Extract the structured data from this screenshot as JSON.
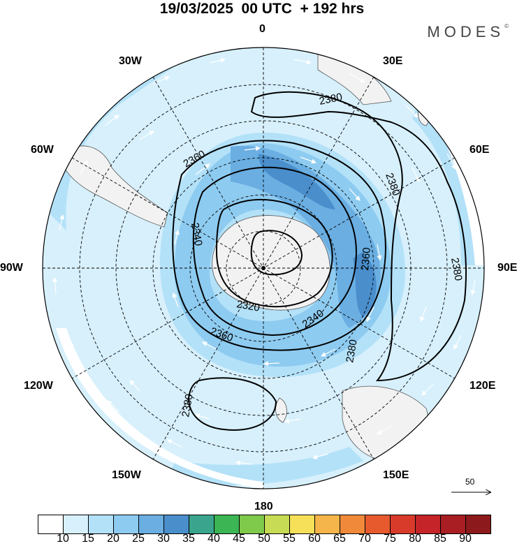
{
  "title": "19/03/2025  00 UTC  + 192 hrs",
  "brand": "MODES",
  "brand_mark": "©",
  "longitude_labels": {
    "n0": "0",
    "n30e": "30E",
    "n60e": "60E",
    "n90e": "90E",
    "n120e": "120E",
    "n150e": "150E",
    "n180": "180",
    "n150w": "150W",
    "n120w": "120W",
    "n90w": "90W",
    "n60w": "60W",
    "n30w": "30W"
  },
  "contours": {
    "c2320": "2320",
    "c2340a": "2340",
    "c2340b": "2340",
    "c2360a": "2360",
    "c2360b": "2360",
    "c2360c": "2360",
    "c2380a": "2380",
    "c2380b": "2380",
    "c2380c": "2380",
    "c2380d": "2380",
    "c2380e": "2380"
  },
  "reference_vector": "50",
  "colorbar": {
    "labels": [
      "10",
      "15",
      "20",
      "25",
      "30",
      "35",
      "40",
      "45",
      "50",
      "55",
      "60",
      "65",
      "70",
      "75",
      "80",
      "85",
      "90"
    ],
    "colors": [
      "#ffffff",
      "#d7f0fc",
      "#b3e1f8",
      "#8ecbf0",
      "#6aaee2",
      "#4a8ecc",
      "#3aa58c",
      "#3cb554",
      "#7fc94b",
      "#c8db55",
      "#f6e05a",
      "#f5b54a",
      "#f08a3a",
      "#e65a2e",
      "#d83b2a",
      "#c52428",
      "#a81e22",
      "#8c1a1c"
    ]
  }
}
